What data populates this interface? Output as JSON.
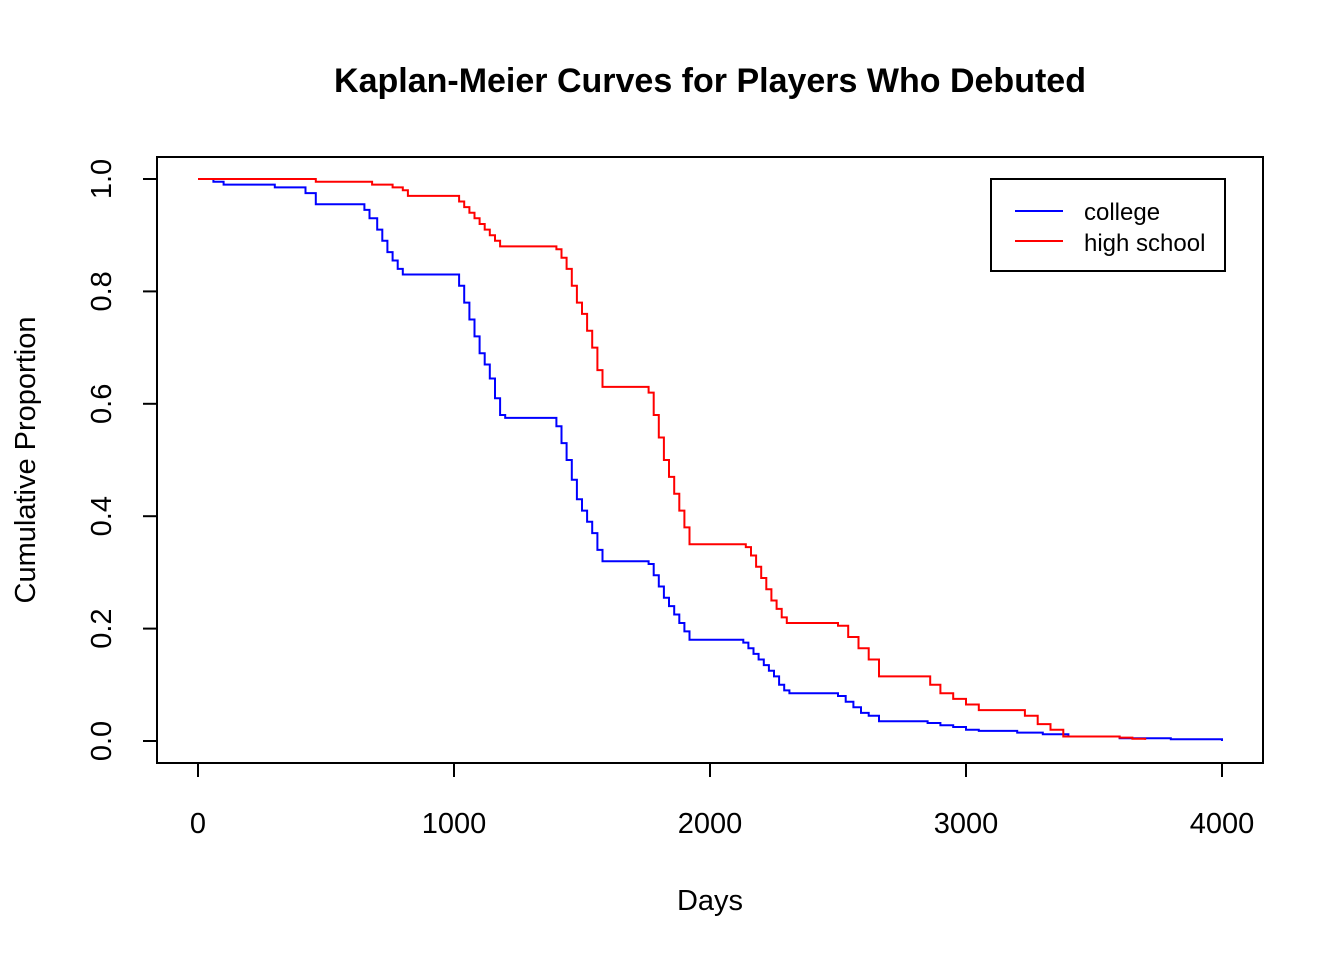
{
  "chart_data": {
    "type": "line",
    "title": "Kaplan-Meier Curves for Players Who Debuted",
    "xlabel": "Days",
    "ylabel": "Cumulative Proportion",
    "xlim": [
      0,
      4000
    ],
    "ylim": [
      0,
      1
    ],
    "xticks": [
      "0",
      "1000",
      "2000",
      "3000",
      "4000"
    ],
    "yticks": [
      "0.0",
      "0.2",
      "0.4",
      "0.6",
      "0.8",
      "1.0"
    ],
    "grid": false,
    "legend_position": "top-right",
    "series": [
      {
        "name": "college",
        "color": "#0000ff",
        "x": [
          0,
          60,
          100,
          300,
          420,
          460,
          650,
          670,
          700,
          720,
          740,
          760,
          780,
          800,
          820,
          1020,
          1040,
          1060,
          1080,
          1100,
          1120,
          1140,
          1160,
          1180,
          1200,
          1220,
          1400,
          1420,
          1440,
          1460,
          1480,
          1500,
          1520,
          1540,
          1560,
          1580,
          1760,
          1780,
          1800,
          1820,
          1840,
          1860,
          1880,
          1900,
          1920,
          2130,
          2150,
          2170,
          2190,
          2210,
          2230,
          2250,
          2270,
          2290,
          2310,
          2500,
          2530,
          2560,
          2590,
          2620,
          2660,
          2850,
          2900,
          2950,
          3000,
          3050,
          3200,
          3300,
          3400,
          3600,
          3800,
          4000
        ],
        "y": [
          1.0,
          0.995,
          0.99,
          0.985,
          0.975,
          0.955,
          0.945,
          0.93,
          0.91,
          0.89,
          0.87,
          0.855,
          0.84,
          0.83,
          0.83,
          0.81,
          0.78,
          0.75,
          0.72,
          0.69,
          0.67,
          0.645,
          0.61,
          0.58,
          0.575,
          0.575,
          0.56,
          0.53,
          0.5,
          0.465,
          0.43,
          0.41,
          0.39,
          0.37,
          0.34,
          0.32,
          0.315,
          0.295,
          0.275,
          0.255,
          0.24,
          0.225,
          0.21,
          0.195,
          0.18,
          0.175,
          0.165,
          0.155,
          0.145,
          0.135,
          0.125,
          0.115,
          0.1,
          0.09,
          0.085,
          0.08,
          0.07,
          0.06,
          0.05,
          0.045,
          0.035,
          0.032,
          0.028,
          0.025,
          0.02,
          0.018,
          0.015,
          0.012,
          0.008,
          0.005,
          0.003,
          0.0
        ]
      },
      {
        "name": "high school",
        "color": "#ff0000",
        "x": [
          0,
          460,
          680,
          760,
          800,
          820,
          1020,
          1040,
          1060,
          1080,
          1100,
          1120,
          1140,
          1160,
          1180,
          1400,
          1420,
          1440,
          1460,
          1480,
          1500,
          1520,
          1540,
          1560,
          1580,
          1760,
          1780,
          1800,
          1820,
          1840,
          1860,
          1880,
          1900,
          1920,
          2140,
          2160,
          2180,
          2200,
          2220,
          2240,
          2260,
          2280,
          2300,
          2500,
          2540,
          2580,
          2620,
          2660,
          2860,
          2900,
          2950,
          3000,
          3050,
          3230,
          3280,
          3330,
          3380,
          3600,
          3650,
          3700
        ],
        "y": [
          1.0,
          0.995,
          0.99,
          0.985,
          0.98,
          0.97,
          0.96,
          0.95,
          0.94,
          0.93,
          0.92,
          0.91,
          0.9,
          0.89,
          0.88,
          0.875,
          0.86,
          0.84,
          0.81,
          0.78,
          0.76,
          0.73,
          0.7,
          0.66,
          0.63,
          0.62,
          0.58,
          0.54,
          0.5,
          0.47,
          0.44,
          0.41,
          0.38,
          0.35,
          0.345,
          0.33,
          0.31,
          0.29,
          0.27,
          0.25,
          0.235,
          0.22,
          0.21,
          0.205,
          0.185,
          0.165,
          0.145,
          0.115,
          0.1,
          0.085,
          0.075,
          0.065,
          0.055,
          0.045,
          0.03,
          0.02,
          0.008,
          0.006,
          0.004,
          0.002
        ]
      }
    ]
  }
}
